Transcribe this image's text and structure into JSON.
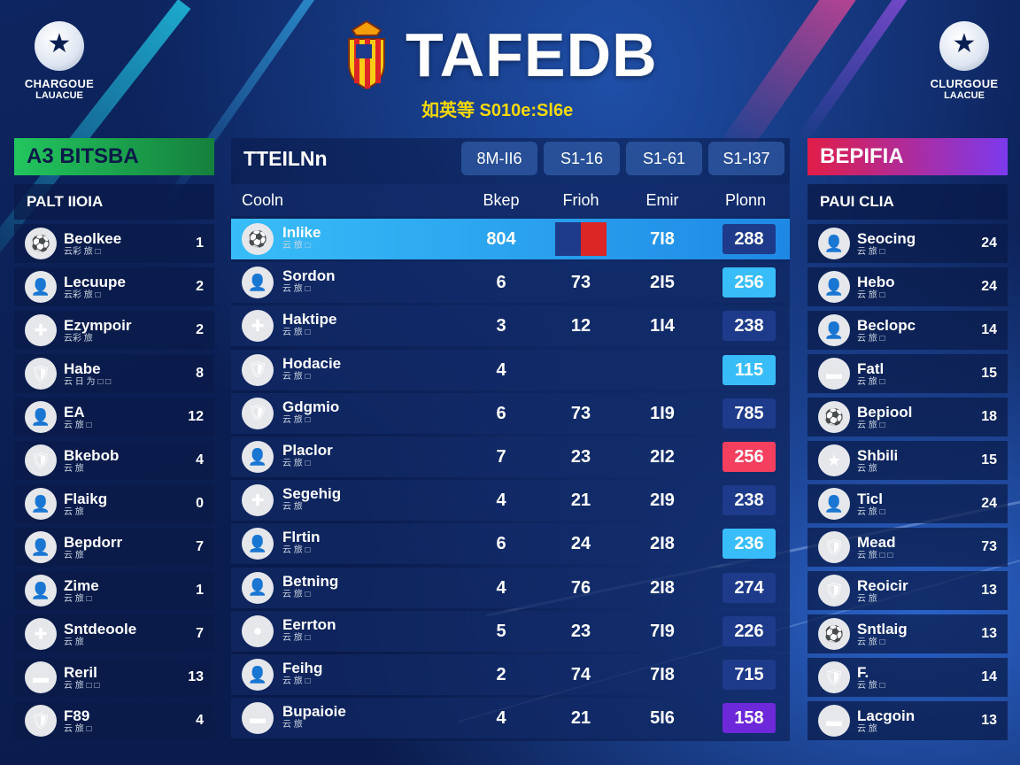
{
  "header": {
    "title": "TAFEDB",
    "subtitle": "如英等 S010e:Sl6e",
    "logo_left": {
      "line1": "CHARGOUE",
      "line2": "LAUACUE"
    },
    "logo_right": {
      "line1": "CLURGOUE",
      "line2": "LAACUE"
    }
  },
  "left_panel": {
    "title": "A3 BITSBA",
    "subtitle": "PALT IIOIA",
    "rows": [
      {
        "name": "Beolkee",
        "sub": "云彩 旅 □",
        "value": "1",
        "icon": "⚽"
      },
      {
        "name": "Lecuupe",
        "sub": "云彩 旅 □",
        "value": "2",
        "icon": "👤"
      },
      {
        "name": "Ezympoir",
        "sub": "云彩 旅",
        "value": "2",
        "icon": "✚"
      },
      {
        "name": "Habe",
        "sub": "云 日 为 □ □",
        "value": "8",
        "icon": "🛡"
      },
      {
        "name": "EA",
        "sub": "云 旅 □",
        "value": "12",
        "icon": "👤"
      },
      {
        "name": "Bkebob",
        "sub": "云 旅",
        "value": "4",
        "icon": "🛡"
      },
      {
        "name": "Flaikg",
        "sub": "云 旅",
        "value": "0",
        "icon": "👤"
      },
      {
        "name": "Bepdorr",
        "sub": "云 旅",
        "value": "7",
        "icon": "👤"
      },
      {
        "name": "Zime",
        "sub": "云 旅 □",
        "value": "1",
        "icon": "👤"
      },
      {
        "name": "Sntdeoole",
        "sub": "云 旅",
        "value": "7",
        "icon": "✚"
      },
      {
        "name": "Reril",
        "sub": "云 旅 □ □",
        "value": "13",
        "icon": "▬"
      },
      {
        "name": "F89",
        "sub": "云 旅 □",
        "value": "4",
        "icon": "🛡"
      }
    ]
  },
  "right_panel": {
    "title": "BEPIFIA",
    "subtitle": "PAUI CLIA",
    "rows": [
      {
        "name": "Seocing",
        "sub": "云 旅 □",
        "value": "24",
        "icon": "👤"
      },
      {
        "name": "Hebo",
        "sub": "云 旅 □",
        "value": "24",
        "icon": "👤"
      },
      {
        "name": "Beclopc",
        "sub": "云 旅 □",
        "value": "14",
        "icon": "👤"
      },
      {
        "name": "Fatl",
        "sub": "云 旅 □",
        "value": "15",
        "icon": "▬"
      },
      {
        "name": "Bepiool",
        "sub": "云 旅 □",
        "value": "18",
        "icon": "⚽"
      },
      {
        "name": "Shbili",
        "sub": "云 旅",
        "value": "15",
        "icon": "★"
      },
      {
        "name": "Ticl",
        "sub": "云 旅 □",
        "value": "24",
        "icon": "👤"
      },
      {
        "name": "Mead",
        "sub": "云 旅 □ □",
        "value": "73",
        "icon": "🛡"
      },
      {
        "name": "Reoicir",
        "sub": "云 旅",
        "value": "13",
        "icon": "🛡"
      },
      {
        "name": "Sntlaig",
        "sub": "云 旅 □",
        "value": "13",
        "icon": "⚽"
      },
      {
        "name": "F.",
        "sub": "云 旅 □",
        "value": "14",
        "icon": "🛡"
      },
      {
        "name": "Lacgoin",
        "sub": "云 旅",
        "value": "13",
        "icon": "▬"
      }
    ]
  },
  "center": {
    "title": "TTEILNn",
    "tabs": [
      "8M-II6",
      "S1-16",
      "S1-61",
      "S1-I37"
    ],
    "columns": [
      "Cooln",
      "Bkep",
      "Frioh",
      "Emir",
      "Plonn"
    ],
    "rows": [
      {
        "name": "Inlike",
        "sub": "云 旅 □",
        "c1": "804",
        "c2": "",
        "c3": "7I8",
        "c4": "288",
        "pill": "#1e3a8a",
        "icon": "⚽",
        "flag": true,
        "highlight": true
      },
      {
        "name": "Sordon",
        "sub": "云 旅 □",
        "c1": "6",
        "c2": "73",
        "c3": "2I5",
        "c4": "256",
        "pill": "#38bdf8",
        "icon": "👤"
      },
      {
        "name": "Haktipe",
        "sub": "云 旅 □",
        "c1": "3",
        "c2": "12",
        "c3": "1I4",
        "c4": "238",
        "pill": "#1e3a8a",
        "icon": "✚"
      },
      {
        "name": "Hodacie",
        "sub": "云 旅 □",
        "c1": "4",
        "c2": "",
        "c3": "",
        "c4": "115",
        "pill": "#38bdf8",
        "icon": "🛡"
      },
      {
        "name": "Gdgmio",
        "sub": "云 旅 □",
        "c1": "6",
        "c2": "73",
        "c3": "1I9",
        "c4": "785",
        "pill": "#1e3a8a",
        "icon": "🛡"
      },
      {
        "name": "Placlor",
        "sub": "云 旅 □",
        "c1": "7",
        "c2": "23",
        "c3": "2I2",
        "c4": "256",
        "pill": "#f43f5e",
        "icon": "👤"
      },
      {
        "name": "Segehig",
        "sub": "云 旅",
        "c1": "4",
        "c2": "21",
        "c3": "2I9",
        "c4": "238",
        "pill": "#1e3a8a",
        "icon": "✚"
      },
      {
        "name": "Flrtin",
        "sub": "云 旅 □",
        "c1": "6",
        "c2": "24",
        "c3": "2I8",
        "c4": "236",
        "pill": "#38bdf8",
        "icon": "👤"
      },
      {
        "name": "Betning",
        "sub": "云 旅 □",
        "c1": "4",
        "c2": "76",
        "c3": "2I8",
        "c4": "274",
        "pill": "#1e3a8a",
        "icon": "👤"
      },
      {
        "name": "Eerrton",
        "sub": "云 旅 □",
        "c1": "5",
        "c2": "23",
        "c3": "7I9",
        "c4": "226",
        "pill": "#1e3a8a",
        "icon": "●"
      },
      {
        "name": "Feihg",
        "sub": "云 旅 □",
        "c1": "2",
        "c2": "74",
        "c3": "7I8",
        "c4": "715",
        "pill": "#1e3a8a",
        "icon": "👤"
      },
      {
        "name": "Bupaioie",
        "sub": "云 旅",
        "c1": "4",
        "c2": "21",
        "c3": "5I6",
        "c4": "158",
        "pill": "#6d28d9",
        "icon": "▬"
      }
    ]
  }
}
